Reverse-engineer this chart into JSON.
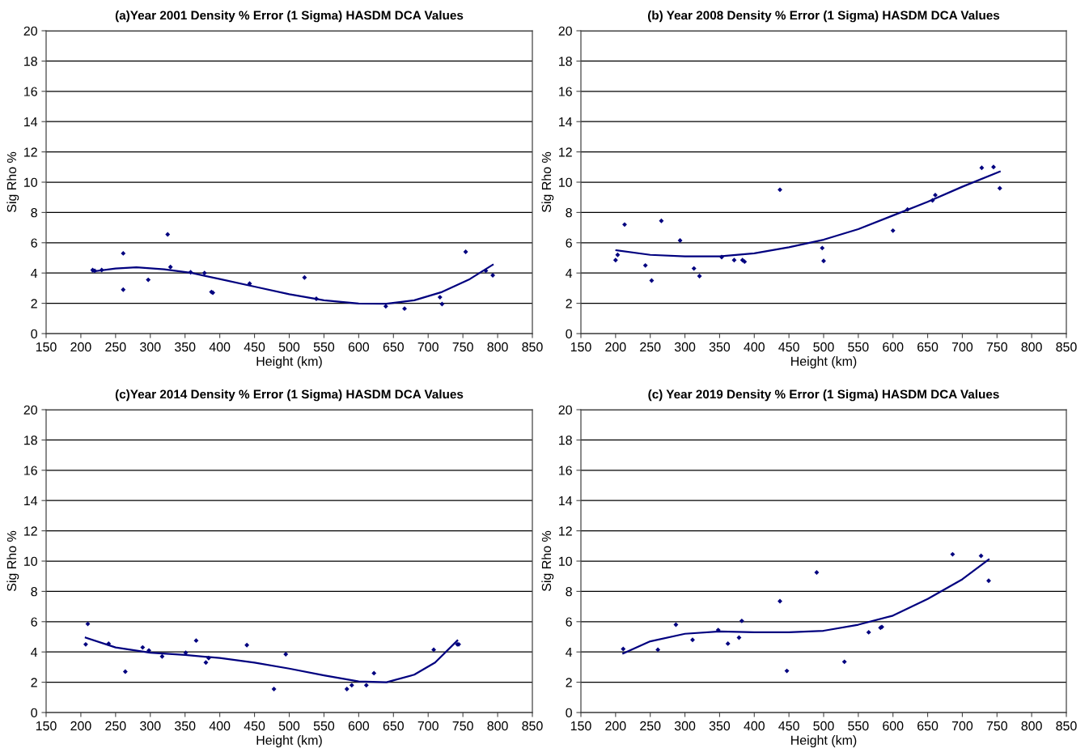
{
  "chart_data": [
    {
      "type": "scatter",
      "title": "(a)Year 2001 Density % Error (1 Sigma) HASDM DCA Values",
      "xlabel": "Height (km)",
      "ylabel": "Sig Rho %",
      "xlim": [
        150,
        850
      ],
      "xticks": [
        150,
        200,
        250,
        300,
        350,
        400,
        450,
        500,
        550,
        600,
        650,
        700,
        750,
        800,
        850
      ],
      "ylim": [
        0,
        20
      ],
      "yticks": [
        0,
        2,
        4,
        6,
        8,
        10,
        12,
        14,
        16,
        18,
        20
      ],
      "grid": "y",
      "series": [
        {
          "type": "scatter",
          "marker": "diamond",
          "color": "#00007f",
          "x": [
            217,
            220,
            230,
            261,
            261,
            297,
            325,
            329,
            358,
            378,
            388,
            390,
            443,
            522,
            539,
            639,
            666,
            717,
            720,
            754,
            783,
            793
          ],
          "values": [
            4.2,
            4.15,
            4.2,
            5.3,
            2.9,
            3.55,
            6.55,
            4.4,
            4.05,
            4.0,
            2.75,
            2.7,
            3.3,
            3.7,
            2.3,
            1.8,
            1.65,
            2.4,
            1.95,
            5.4,
            4.15,
            3.85
          ]
        },
        {
          "type": "line",
          "marker": "none",
          "color": "#00007f",
          "x": [
            217,
            250,
            280,
            320,
            360,
            400,
            450,
            500,
            550,
            600,
            640,
            680,
            720,
            760,
            793
          ],
          "values": [
            4.1,
            4.3,
            4.38,
            4.25,
            4.0,
            3.6,
            3.1,
            2.6,
            2.2,
            1.98,
            1.97,
            2.2,
            2.75,
            3.6,
            4.55
          ]
        }
      ]
    },
    {
      "type": "scatter",
      "title": "(b) Year 2008 Density % Error (1 Sigma) HASDM DCA Values",
      "xlabel": "Height (km)",
      "ylabel": "Sig Rho %",
      "xlim": [
        150,
        850
      ],
      "xticks": [
        150,
        200,
        250,
        300,
        350,
        400,
        450,
        500,
        550,
        600,
        650,
        700,
        750,
        800,
        850
      ],
      "ylim": [
        0,
        20
      ],
      "yticks": [
        0,
        2,
        4,
        6,
        8,
        10,
        12,
        14,
        16,
        18,
        20
      ],
      "grid": "y",
      "series": [
        {
          "type": "scatter",
          "marker": "diamond",
          "color": "#00007f",
          "x": [
            200,
            203,
            213,
            243,
            252,
            266,
            293,
            313,
            321,
            353,
            371,
            383,
            386,
            437,
            498,
            500,
            600,
            621,
            657,
            661,
            728,
            745,
            754
          ],
          "values": [
            4.85,
            5.2,
            7.2,
            4.5,
            3.5,
            7.45,
            6.15,
            4.3,
            3.8,
            5.05,
            4.85,
            4.85,
            4.75,
            9.5,
            5.65,
            4.8,
            6.8,
            8.2,
            8.8,
            9.15,
            10.95,
            11.0,
            9.6
          ]
        },
        {
          "type": "line",
          "marker": "none",
          "color": "#00007f",
          "x": [
            201,
            250,
            300,
            350,
            400,
            450,
            500,
            550,
            600,
            650,
            700,
            754
          ],
          "values": [
            5.5,
            5.2,
            5.1,
            5.1,
            5.3,
            5.7,
            6.2,
            6.9,
            7.8,
            8.7,
            9.7,
            10.7
          ]
        }
      ]
    },
    {
      "type": "scatter",
      "title": "(c)Year 2014 Density % Error (1 Sigma) HASDM DCA Values",
      "xlabel": "Height (km)",
      "ylabel": "Sig Rho %",
      "xlim": [
        150,
        850
      ],
      "xticks": [
        150,
        200,
        250,
        300,
        350,
        400,
        450,
        500,
        550,
        600,
        650,
        700,
        750,
        800,
        850
      ],
      "ylim": [
        0,
        20
      ],
      "yticks": [
        0,
        2,
        4,
        6,
        8,
        10,
        12,
        14,
        16,
        18,
        20
      ],
      "grid": "y",
      "series": [
        {
          "type": "scatter",
          "marker": "diamond",
          "color": "#00007f",
          "x": [
            207,
            210,
            240,
            264,
            289,
            298,
            317,
            351,
            366,
            380,
            384,
            439,
            478,
            495,
            583,
            590,
            611,
            622,
            708,
            742,
            744
          ],
          "values": [
            4.5,
            5.85,
            4.55,
            2.7,
            4.3,
            4.1,
            3.7,
            3.95,
            4.75,
            3.3,
            3.6,
            4.45,
            1.55,
            3.85,
            1.55,
            1.8,
            1.8,
            2.6,
            4.15,
            4.5,
            4.5
          ]
        },
        {
          "type": "line",
          "marker": "none",
          "color": "#00007f",
          "x": [
            207,
            250,
            300,
            350,
            400,
            450,
            500,
            550,
            600,
            640,
            680,
            710,
            742
          ],
          "values": [
            4.95,
            4.3,
            3.95,
            3.8,
            3.6,
            3.3,
            2.9,
            2.45,
            2.05,
            2.0,
            2.5,
            3.3,
            4.75
          ]
        }
      ]
    },
    {
      "type": "scatter",
      "title": "(c) Year 2019 Density % Error (1 Sigma) HASDM DCA Values",
      "xlabel": "Height (km)",
      "ylabel": "Sig Rho %",
      "xlim": [
        150,
        850
      ],
      "xticks": [
        150,
        200,
        250,
        300,
        350,
        400,
        450,
        500,
        550,
        600,
        650,
        700,
        750,
        800,
        850
      ],
      "ylim": [
        0,
        20
      ],
      "yticks": [
        0,
        2,
        4,
        6,
        8,
        10,
        12,
        14,
        16,
        18,
        20
      ],
      "grid": "y",
      "series": [
        {
          "type": "scatter",
          "marker": "diamond",
          "color": "#00007f",
          "x": [
            211,
            261,
            287,
            311,
            348,
            362,
            378,
            382,
            437,
            447,
            490,
            530,
            565,
            582,
            584,
            686,
            727,
            738
          ],
          "values": [
            4.2,
            4.15,
            5.8,
            4.8,
            5.45,
            4.55,
            4.95,
            6.05,
            7.35,
            2.75,
            9.25,
            3.35,
            5.3,
            5.6,
            5.65,
            10.45,
            10.35,
            8.7
          ]
        },
        {
          "type": "line",
          "marker": "none",
          "color": "#00007f",
          "x": [
            211,
            250,
            300,
            350,
            400,
            450,
            500,
            550,
            600,
            650,
            700,
            738
          ],
          "values": [
            3.9,
            4.7,
            5.2,
            5.35,
            5.3,
            5.3,
            5.4,
            5.8,
            6.4,
            7.5,
            8.8,
            10.1
          ]
        }
      ]
    }
  ]
}
